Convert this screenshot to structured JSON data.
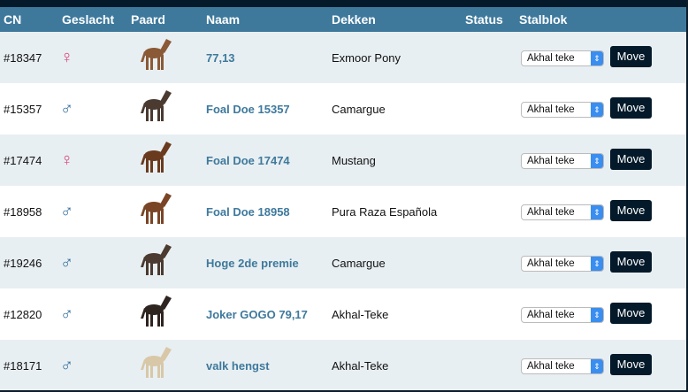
{
  "header": {
    "cn": "CN",
    "geslacht": "Geslacht",
    "paard": "Paard",
    "naam": "Naam",
    "dekken": "Dekken",
    "status": "Status",
    "stalblok": "Stalblok"
  },
  "colors": {
    "header": "#3e799c",
    "female": "#d9457a",
    "male": "#2f6d9c",
    "button": "#041a2a"
  },
  "rows": [
    {
      "cn": "#18347",
      "sex": "♀",
      "gender": "female",
      "name": "77,13",
      "breed": "Exmoor Pony",
      "stal": "Akhal teke",
      "move": "Move",
      "horse_color": "#8a5a36"
    },
    {
      "cn": "#15357",
      "sex": "♂",
      "gender": "male",
      "name": "Foal Doe 15357",
      "breed": "Camargue",
      "stal": "Akhal teke",
      "move": "Move",
      "horse_color": "#4a3a30"
    },
    {
      "cn": "#17474",
      "sex": "♀",
      "gender": "female",
      "name": "Foal Doe 17474",
      "breed": "Mustang",
      "stal": "Akhal teke",
      "move": "Move",
      "horse_color": "#6a3a1e"
    },
    {
      "cn": "#18958",
      "sex": "♂",
      "gender": "male",
      "name": "Foal Doe 18958",
      "breed": "Pura Raza Española",
      "stal": "Akhal teke",
      "move": "Move",
      "horse_color": "#7a4526"
    },
    {
      "cn": "#19246",
      "sex": "♂",
      "gender": "male",
      "name": "Hoge 2de premie",
      "breed": "Camargue",
      "stal": "Akhal teke",
      "move": "Move",
      "horse_color": "#4a3a30"
    },
    {
      "cn": "#12820",
      "sex": "♂",
      "gender": "male",
      "name": "Joker GOGO 79,17",
      "breed": "Akhal-Teke",
      "stal": "Akhal teke",
      "move": "Move",
      "horse_color": "#2e2420"
    },
    {
      "cn": "#18171",
      "sex": "♂",
      "gender": "male",
      "name": "valk hengst",
      "breed": "Akhal-Teke",
      "stal": "Akhal teke",
      "move": "Move",
      "horse_color": "#d8c8a8"
    }
  ]
}
